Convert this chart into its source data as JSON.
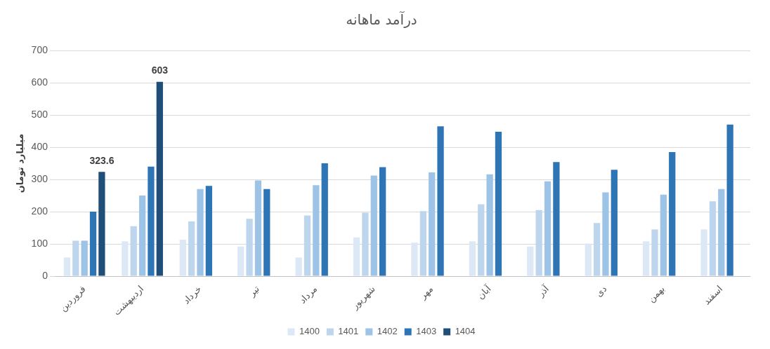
{
  "chart_data": {
    "type": "bar",
    "title": "درآمد ماهانه",
    "ylabel": "میلیارد تومان",
    "categories": [
      "فروردین",
      "اردیبهشت",
      "خرداد",
      "تیر",
      "مرداد",
      "شهریور",
      "مهر",
      "آبان",
      "آذر",
      "دی",
      "بهمن",
      "اسفند"
    ],
    "series": [
      {
        "name": "1400",
        "color": "#dde8f6",
        "values": [
          58,
          108,
          113,
          92,
          58,
          120,
          104,
          108,
          92,
          101,
          108,
          145
        ]
      },
      {
        "name": "1401",
        "color": "#bdd6ee",
        "values": [
          110,
          155,
          170,
          178,
          188,
          197,
          202,
          223,
          205,
          165,
          145,
          232
        ]
      },
      {
        "name": "1402",
        "color": "#9dc3e6",
        "values": [
          110,
          250,
          270,
          297,
          282,
          312,
          322,
          316,
          294,
          260,
          253,
          270
        ]
      },
      {
        "name": "1403",
        "color": "#2e75b6",
        "values": [
          200,
          340,
          280,
          270,
          350,
          338,
          465,
          448,
          354,
          330,
          385,
          470
        ]
      },
      {
        "name": "1404",
        "color": "#1f4e79",
        "values": [
          323.6,
          603,
          null,
          null,
          null,
          null,
          null,
          null,
          null,
          null,
          null,
          null
        ],
        "value_labels": [
          "323.6",
          "603",
          null,
          null,
          null,
          null,
          null,
          null,
          null,
          null,
          null,
          null
        ]
      }
    ],
    "ylim": [
      0,
      700
    ],
    "yticks": [
      0,
      100,
      200,
      300,
      400,
      500,
      600,
      700
    ],
    "grid": "y",
    "legend": "bottom"
  }
}
